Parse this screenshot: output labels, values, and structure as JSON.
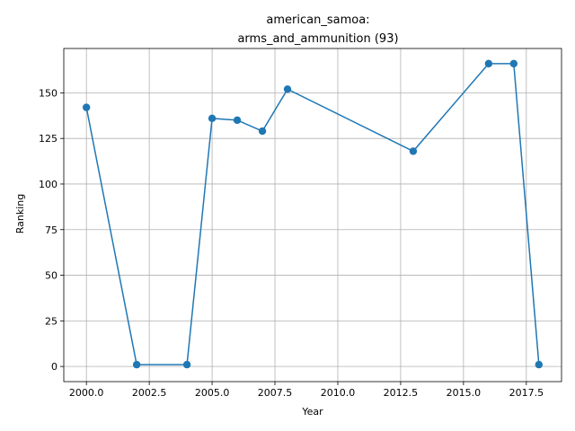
{
  "chart_data": {
    "type": "line",
    "title_line1": "american_samoa:",
    "title_line2": "arms_and_ammunition (93)",
    "xlabel": "Year",
    "ylabel": "Ranking",
    "xlim": [
      1999.1,
      2018.9
    ],
    "ylim": [
      -8.3,
      174.3
    ],
    "xticks": [
      2000,
      2002.5,
      2005,
      2007.5,
      2010,
      2012.5,
      2015,
      2017.5
    ],
    "xtick_labels": [
      "2000.0",
      "2002.5",
      "2005.0",
      "2007.5",
      "2010.0",
      "2012.5",
      "2015.0",
      "2017.5"
    ],
    "yticks": [
      0,
      25,
      50,
      75,
      100,
      125,
      150
    ],
    "ytick_labels": [
      "0",
      "25",
      "50",
      "75",
      "100",
      "125",
      "150"
    ],
    "grid": true,
    "color": "#1f77b4",
    "x": [
      2000,
      2002,
      2004,
      2005,
      2006,
      2007,
      2008,
      2013,
      2016,
      2017,
      2018
    ],
    "y": [
      142,
      1,
      1,
      136,
      135,
      129,
      152,
      118,
      166,
      166,
      1
    ]
  }
}
